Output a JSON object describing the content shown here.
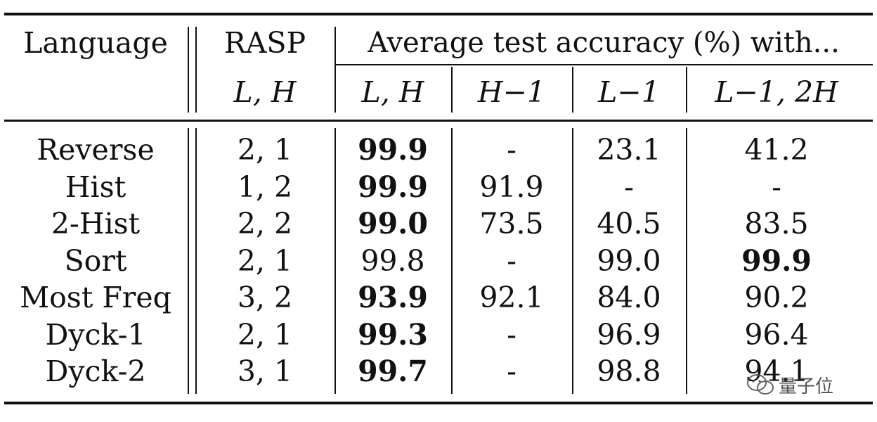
{
  "table": {
    "headers": {
      "language": "Language",
      "rasp": "RASP",
      "avg_group": "Average test accuracy (%) with...",
      "rasp_sub": "L, H",
      "sub": [
        "L, H",
        "H−1",
        "L−1",
        "L−1, 2H"
      ]
    },
    "rows": [
      {
        "lang": "Reverse",
        "rasp": "2, 1",
        "vals": [
          "99.9",
          "-",
          "23.1",
          "41.2"
        ],
        "bold": [
          true,
          false,
          false,
          false
        ]
      },
      {
        "lang": "Hist",
        "rasp": "1, 2",
        "vals": [
          "99.9",
          "91.9",
          "-",
          "-"
        ],
        "bold": [
          true,
          false,
          false,
          false
        ]
      },
      {
        "lang": "2-Hist",
        "rasp": "2, 2",
        "vals": [
          "99.0",
          "73.5",
          "40.5",
          "83.5"
        ],
        "bold": [
          true,
          false,
          false,
          false
        ]
      },
      {
        "lang": "Sort",
        "rasp": "2, 1",
        "vals": [
          "99.8",
          "-",
          "99.0",
          "99.9"
        ],
        "bold": [
          false,
          false,
          false,
          true
        ]
      },
      {
        "lang": "Most Freq",
        "rasp": "3, 2",
        "vals": [
          "93.9",
          "92.1",
          "84.0",
          "90.2"
        ],
        "bold": [
          true,
          false,
          false,
          false
        ]
      },
      {
        "lang": "Dyck-1",
        "rasp": "2, 1",
        "vals": [
          "99.3",
          "-",
          "96.9",
          "96.4"
        ],
        "bold": [
          true,
          false,
          false,
          false
        ]
      },
      {
        "lang": "Dyck-2",
        "rasp": "3, 1",
        "vals": [
          "99.7",
          "-",
          "98.8",
          "94.1"
        ],
        "bold": [
          true,
          false,
          false,
          false
        ]
      }
    ]
  },
  "watermark": {
    "text": "量子位",
    "icon": "wechat-logo-icon"
  }
}
